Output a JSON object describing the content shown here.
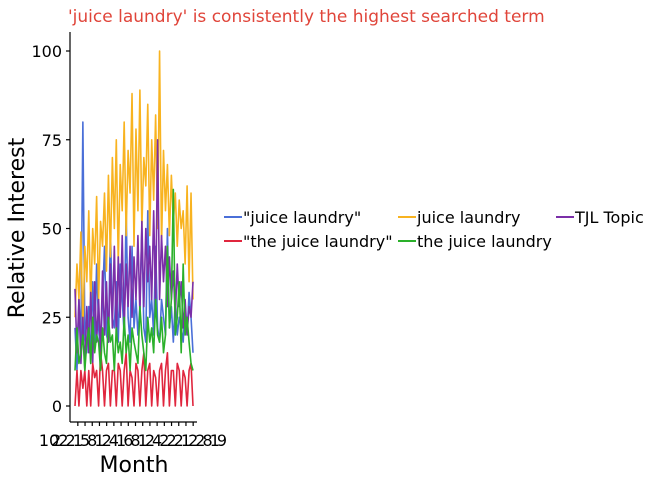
{
  "chart_data": {
    "type": "line",
    "title": "'juice laundry' is consistently the highest searched term",
    "xlabel": "Month",
    "ylabel": "Relative Interest",
    "ylim": [
      0,
      104
    ],
    "y_ticks": [
      0,
      25,
      50,
      75,
      100
    ],
    "xlim": [
      0,
      60
    ],
    "x_tick_labels": [
      "10",
      "2",
      "2",
      "2",
      "1",
      "5",
      "8",
      "1",
      "2",
      "4",
      "1",
      "6",
      "8",
      "1",
      "2",
      "4",
      "2",
      "2",
      "2",
      "1",
      "2",
      "2",
      "8",
      "1",
      "9"
    ],
    "grid": false,
    "legend_position": "right",
    "x": [
      0,
      1,
      2,
      3,
      4,
      5,
      6,
      7,
      8,
      9,
      10,
      11,
      12,
      13,
      14,
      15,
      16,
      17,
      18,
      19,
      20,
      21,
      22,
      23,
      24,
      25,
      26,
      27,
      28,
      29,
      30,
      31,
      32,
      33,
      34,
      35,
      36,
      37,
      38,
      39,
      40,
      41,
      42,
      43,
      44,
      45,
      46,
      47,
      48,
      49,
      50,
      51,
      52,
      53,
      54,
      55,
      56,
      57,
      58,
      59,
      60
    ],
    "series": [
      {
        "name": "\"juice laundry\"",
        "color": "#4a6fd8",
        "values": [
          22,
          10,
          30,
          18,
          80,
          20,
          15,
          28,
          12,
          35,
          18,
          40,
          22,
          15,
          30,
          45,
          20,
          18,
          50,
          25,
          22,
          35,
          18,
          40,
          30,
          20,
          55,
          25,
          18,
          45,
          22,
          30,
          20,
          28,
          50,
          22,
          18,
          55,
          25,
          30,
          20,
          45,
          22,
          18,
          30,
          25,
          20,
          50,
          22,
          28,
          18,
          30,
          20,
          25,
          22,
          18,
          28,
          20,
          32,
          25,
          15
        ]
      },
      {
        "name": "juice laundry",
        "color": "#f8b320",
        "values": [
          25,
          40,
          30,
          49,
          20,
          45,
          35,
          55,
          28,
          50,
          40,
          59,
          30,
          52,
          45,
          60,
          38,
          65,
          42,
          70,
          50,
          75,
          40,
          68,
          55,
          80,
          48,
          72,
          60,
          88,
          45,
          78,
          55,
          89,
          50,
          70,
          62,
          85,
          48,
          75,
          58,
          82,
          50,
          100,
          45,
          72,
          55,
          68,
          48,
          65,
          52,
          60,
          45,
          58,
          50,
          55,
          40,
          62,
          35,
          60,
          30
        ]
      },
      {
        "name": "TJL Topic",
        "color": "#7b2fa8",
        "values": [
          33,
          15,
          30,
          12,
          25,
          10,
          28,
          15,
          32,
          12,
          35,
          18,
          30,
          15,
          38,
          20,
          35,
          18,
          40,
          22,
          45,
          20,
          42,
          25,
          48,
          22,
          40,
          28,
          45,
          25,
          42,
          30,
          48,
          26,
          52,
          28,
          50,
          35,
          45,
          30,
          55,
          28,
          75,
          30,
          48,
          35,
          45,
          28,
          42,
          30,
          38,
          25,
          40,
          28,
          35,
          22,
          30,
          20,
          28,
          25,
          35
        ]
      },
      {
        "name": "\"the juice laundry\"",
        "color": "#e0263e",
        "values": [
          0,
          10,
          0,
          10,
          5,
          10,
          0,
          10,
          0,
          12,
          8,
          10,
          0,
          15,
          10,
          0,
          10,
          12,
          0,
          10,
          10,
          0,
          12,
          10,
          0,
          10,
          15,
          0,
          10,
          8,
          0,
          12,
          10,
          0,
          10,
          15,
          0,
          10,
          12,
          0,
          10,
          8,
          0,
          10,
          12,
          0,
          10,
          15,
          0,
          10,
          10,
          0,
          12,
          10,
          0,
          10,
          8,
          0,
          10,
          12,
          0
        ]
      },
      {
        "name": "the juice laundry",
        "color": "#2ab02a",
        "values": [
          10,
          22,
          12,
          15,
          20,
          10,
          18,
          22,
          12,
          25,
          15,
          20,
          18,
          10,
          22,
          15,
          12,
          25,
          18,
          20,
          10,
          22,
          15,
          18,
          12,
          25,
          15,
          20,
          10,
          22,
          18,
          15,
          12,
          28,
          20,
          15,
          10,
          25,
          18,
          22,
          15,
          30,
          20,
          18,
          25,
          15,
          20,
          45,
          22,
          30,
          61,
          20,
          25,
          35,
          15,
          40,
          20,
          25,
          18,
          12,
          10
        ]
      }
    ]
  }
}
